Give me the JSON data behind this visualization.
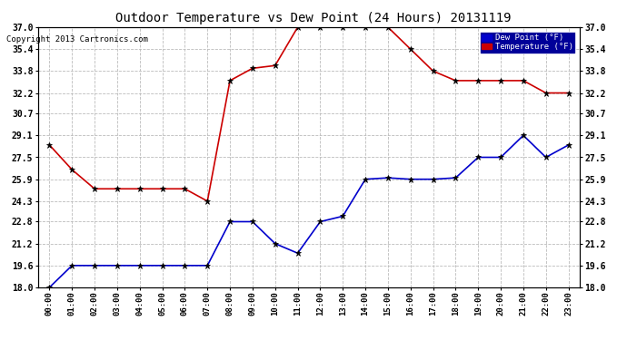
{
  "title": "Outdoor Temperature vs Dew Point (24 Hours) 20131119",
  "copyright": "Copyright 2013 Cartronics.com",
  "x_labels": [
    "00:00",
    "01:00",
    "02:00",
    "03:00",
    "04:00",
    "05:00",
    "06:00",
    "07:00",
    "08:00",
    "09:00",
    "10:00",
    "11:00",
    "12:00",
    "13:00",
    "14:00",
    "15:00",
    "16:00",
    "17:00",
    "18:00",
    "19:00",
    "20:00",
    "21:00",
    "22:00",
    "23:00"
  ],
  "temp_color": "#cc0000",
  "dew_color": "#0000cc",
  "background_color": "#ffffff",
  "plot_bg_color": "#ffffff",
  "grid_color": "#bbbbbb",
  "ylim": [
    18.0,
    37.0
  ],
  "yticks": [
    18.0,
    19.6,
    21.2,
    22.8,
    24.3,
    25.9,
    27.5,
    29.1,
    30.7,
    32.2,
    33.8,
    35.4,
    37.0
  ],
  "temperature": [
    28.4,
    26.6,
    25.2,
    25.2,
    25.2,
    25.2,
    25.2,
    24.3,
    33.1,
    34.0,
    34.2,
    37.0,
    37.0,
    37.0,
    37.0,
    37.0,
    35.4,
    33.8,
    33.1,
    33.1,
    33.1,
    33.1,
    32.2,
    32.2
  ],
  "dew_point": [
    18.0,
    19.6,
    19.6,
    19.6,
    19.6,
    19.6,
    19.6,
    19.6,
    22.8,
    22.8,
    21.2,
    20.5,
    22.8,
    23.2,
    25.9,
    26.0,
    25.9,
    25.9,
    26.0,
    27.5,
    27.5,
    29.1,
    27.5,
    28.4
  ],
  "legend_dew_label": "Dew Point (°F)",
  "legend_temp_label": "Temperature (°F)"
}
